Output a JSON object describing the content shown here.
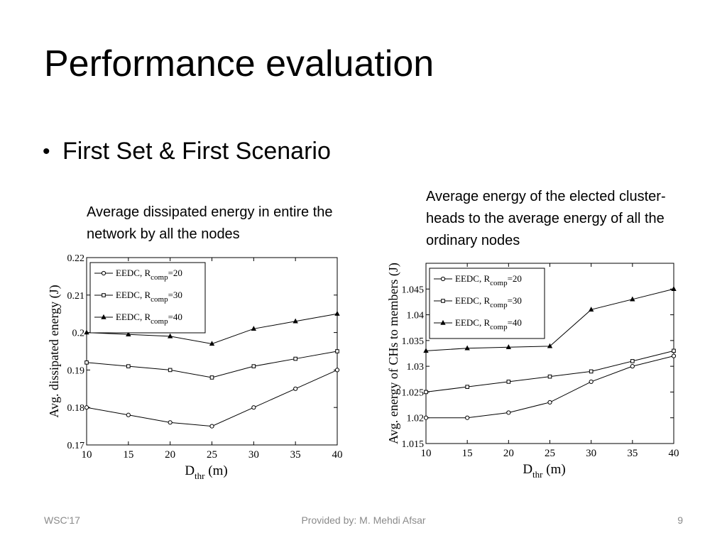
{
  "slide": {
    "title": "Performance evaluation",
    "bullet": "First Set & First Scenario",
    "caption_left": "Average dissipated energy in entire the network by all the nodes",
    "caption_right": "Average energy of the elected cluster-heads to the average energy of all the ordinary nodes"
  },
  "footer": {
    "left": "WSC'17",
    "center": "Provided by: M. Mehdi Afsar",
    "right": "9"
  },
  "chart_data": [
    {
      "type": "line",
      "title": "",
      "xlabel": "D",
      "xlabel_sub": "thr",
      "xlabel_unit": " (m)",
      "ylabel": "Avg. dissipated energy (J)",
      "x": [
        10,
        15,
        20,
        25,
        30,
        35,
        40
      ],
      "xlim": [
        10,
        40
      ],
      "ylim": [
        0.17,
        0.22
      ],
      "yticks": [
        0.17,
        0.18,
        0.19,
        0.2,
        0.21,
        0.22
      ],
      "ytick_labels": [
        "0.17",
        "0.18",
        "0.19",
        "0.2",
        "0.21",
        "0.22"
      ],
      "grid": false,
      "legend_position": "top-left",
      "series": [
        {
          "name": "EEDC, R",
          "name_sub": "comp",
          "name_tail": "=20",
          "marker": "circle",
          "values": [
            0.18,
            0.178,
            0.176,
            0.175,
            0.18,
            0.185,
            0.19
          ]
        },
        {
          "name": "EEDC, R",
          "name_sub": "comp",
          "name_tail": "=30",
          "marker": "square",
          "values": [
            0.192,
            0.191,
            0.19,
            0.188,
            0.191,
            0.193,
            0.195
          ]
        },
        {
          "name": "EEDC, R",
          "name_sub": "comp",
          "name_tail": "=40",
          "marker": "triangle",
          "values": [
            0.2,
            0.1995,
            0.199,
            0.197,
            0.201,
            0.203,
            0.205
          ]
        }
      ]
    },
    {
      "type": "line",
      "title": "",
      "xlabel": "D",
      "xlabel_sub": "thr",
      "xlabel_unit": " (m)",
      "ylabel": "Avg. energy of CHs to members (J)",
      "x": [
        10,
        15,
        20,
        25,
        30,
        35,
        40
      ],
      "xlim": [
        10,
        40
      ],
      "ylim": [
        1.015,
        1.05
      ],
      "yticks": [
        1.015,
        1.02,
        1.025,
        1.03,
        1.035,
        1.04,
        1.045
      ],
      "ytick_labels": [
        "1.015",
        "1.02",
        "1.025",
        "1.03",
        "1.035",
        "1.04",
        "1.045"
      ],
      "grid": false,
      "legend_position": "top-left",
      "series": [
        {
          "name": "EEDC, R",
          "name_sub": "comp",
          "name_tail": "=20",
          "marker": "circle",
          "values": [
            1.02,
            1.02,
            1.021,
            1.023,
            1.027,
            1.03,
            1.032
          ]
        },
        {
          "name": "EEDC, R",
          "name_sub": "comp",
          "name_tail": "=30",
          "marker": "square",
          "values": [
            1.025,
            1.026,
            1.027,
            1.028,
            1.029,
            1.031,
            1.033
          ]
        },
        {
          "name": "EEDC, R",
          "name_sub": "comp",
          "name_tail": "=40",
          "marker": "triangle",
          "values": [
            1.033,
            1.0335,
            1.0337,
            1.0339,
            1.041,
            1.043,
            1.045
          ]
        }
      ]
    }
  ]
}
